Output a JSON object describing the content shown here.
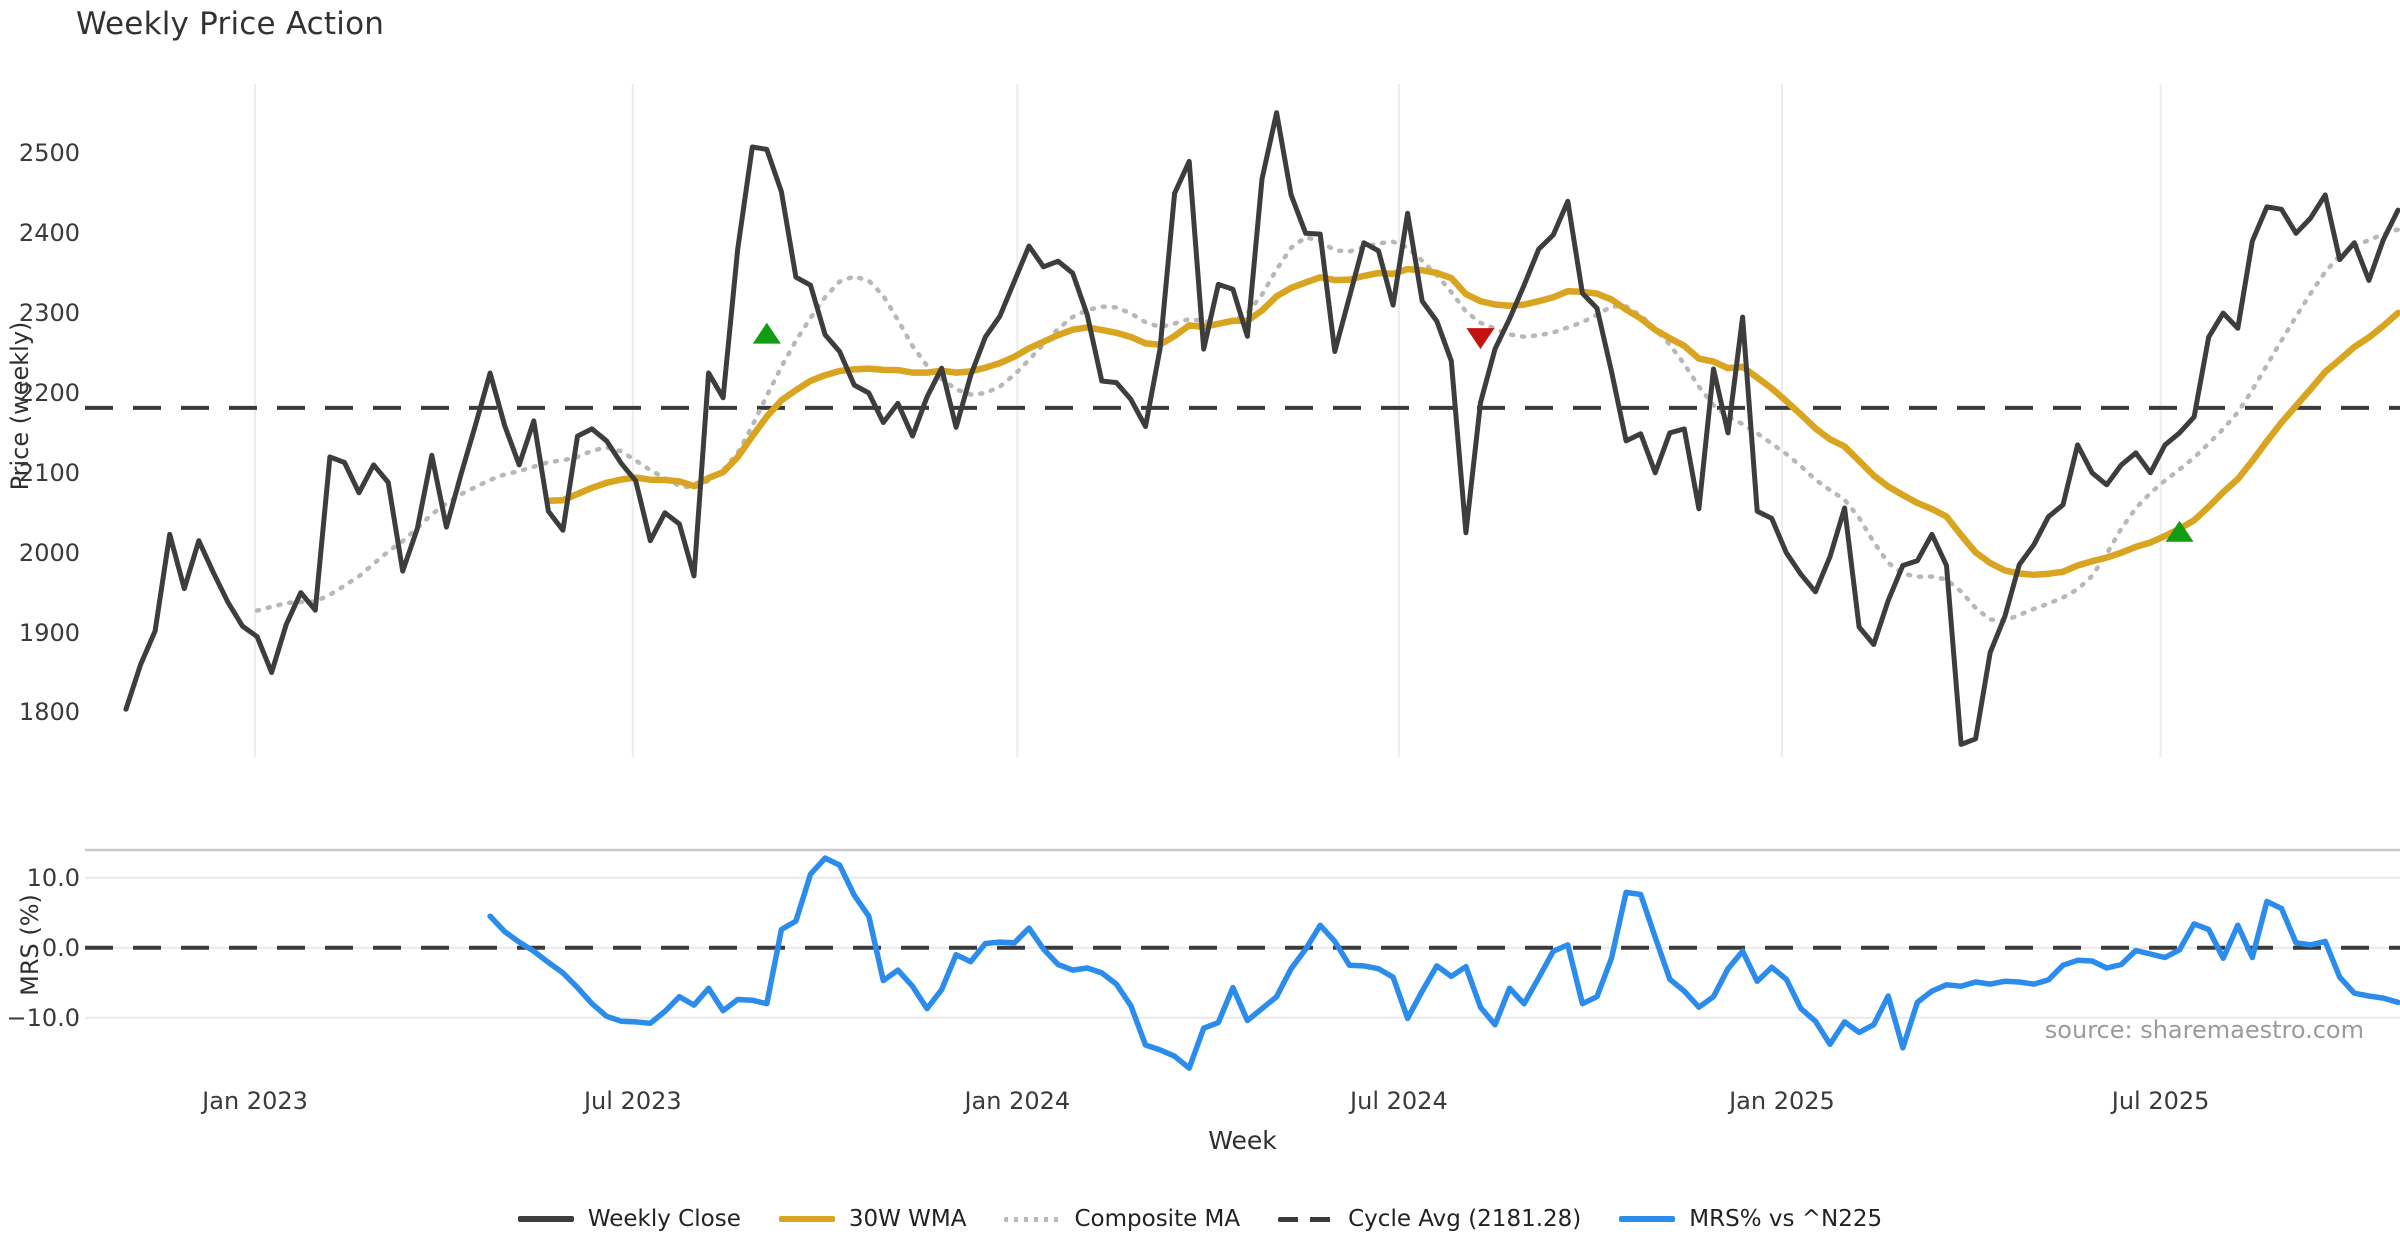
{
  "title": "Weekly Price Action",
  "source": "source: sharemaestro.com",
  "colors": {
    "close": "#3d3d3d",
    "wma": "#d9a521",
    "composite": "#b8b8b8",
    "cycle_dash": "#3a3a3a",
    "mrs": "#2b8cec",
    "buy_marker": "#119c11",
    "sell_marker": "#c41212",
    "gridline": "#ececec",
    "spine": "#c9c9c9"
  },
  "legend": [
    {
      "label": "Weekly Close",
      "swatch": "solid-close"
    },
    {
      "label": "30W WMA",
      "swatch": "solid-wma"
    },
    {
      "label": "Composite MA",
      "swatch": "dotted"
    },
    {
      "label": "Cycle Avg (2181.28)",
      "swatch": "dashed"
    },
    {
      "label": "MRS% vs ^N225",
      "swatch": "solid-mrs"
    }
  ],
  "chart_data": {
    "type": "line",
    "title": "Weekly Price Action",
    "xlabel": "Week",
    "x_ticks": [
      {
        "label": "Jan 2023",
        "week": 8.86
      },
      {
        "label": "Jul 2023",
        "week": 34.8
      },
      {
        "label": "Jan 2024",
        "week": 61.2
      },
      {
        "label": "Jul 2024",
        "week": 87.4
      },
      {
        "label": "Jan 2025",
        "week": 113.7
      },
      {
        "label": "Jul 2025",
        "week": 139.7
      }
    ],
    "panels": [
      {
        "name": "price",
        "ylabel": "Price (weekly)",
        "ylim": [
          1740,
          2580
        ],
        "cycle_avg": 2181.28,
        "yticks": [
          {
            "label": "2500",
            "value": 2500
          },
          {
            "label": "2400",
            "value": 2400
          },
          {
            "label": "2300",
            "value": 2300
          },
          {
            "label": "2200",
            "value": 2200
          },
          {
            "label": "2100",
            "value": 2100
          },
          {
            "label": "2000",
            "value": 2000
          },
          {
            "label": "1900",
            "value": 1900
          },
          {
            "label": "1800",
            "value": 1800
          }
        ],
        "series": {
          "weekly_close": {
            "name": "Weekly Close",
            "start_week": 0,
            "values": [
              1804,
              1860,
              1902,
              2023,
              1955,
              2015,
              1975,
              1938,
              1908,
              1895,
              1850,
              1910,
              1950,
              1928,
              2120,
              2113,
              2075,
              2110,
              2088,
              1977,
              2030,
              2122,
              2032,
              2098,
              2160,
              2225,
              2159,
              2110,
              2165,
              2052,
              2028,
              2146,
              2155,
              2140,
              2112,
              2090,
              2015,
              2050,
              2036,
              1971,
              2225,
              2194,
              2380,
              2508,
              2505,
              2452,
              2345,
              2335,
              2273,
              2252,
              2210,
              2200,
              2163,
              2187,
              2146,
              2195,
              2231,
              2157,
              2222,
              2270,
              2296,
              2340,
              2384,
              2358,
              2365,
              2350,
              2298,
              2215,
              2213,
              2192,
              2158,
              2255,
              2450,
              2490,
              2255,
              2336,
              2330,
              2271,
              2468,
              2551,
              2448,
              2400,
              2399,
              2252,
              2320,
              2388,
              2378,
              2310,
              2425,
              2315,
              2290,
              2240,
              2025,
              2188,
              2255,
              2293,
              2335,
              2380,
              2398,
              2440,
              2325,
              2306,
              2227,
              2140,
              2149,
              2100,
              2150,
              2155,
              2055,
              2230,
              2150,
              2295,
              2052,
              2043,
              2000,
              1973,
              1951,
              1995,
              2056,
              1907,
              1885,
              1940,
              1984,
              1990,
              2023,
              1984,
              1760,
              1767,
              1875,
              1920,
              1985,
              2010,
              2045,
              2060,
              2135,
              2100,
              2085,
              2110,
              2125,
              2100,
              2135,
              2150,
              2170,
              2270,
              2300,
              2281,
              2390,
              2433,
              2430,
              2400,
              2419,
              2448,
              2367,
              2388,
              2341,
              2392,
              2429
            ]
          },
          "wma_30w": {
            "name": "30W WMA",
            "derived_from": "weekly_close",
            "type": "wma",
            "window": 30
          },
          "composite_ma": {
            "name": "Composite MA",
            "derived_from": "weekly_close",
            "type": "sma",
            "window": 10
          }
        },
        "signals": [
          {
            "week": 44,
            "value": 2273,
            "direction": "up"
          },
          {
            "week": 93,
            "value": 2270,
            "direction": "down"
          },
          {
            "week": 141,
            "value": 2025,
            "direction": "up"
          }
        ]
      },
      {
        "name": "mrs",
        "ylabel": "MRS (%)",
        "ylim": [
          -19,
          14.5
        ],
        "zero_line": 0,
        "yticks": [
          {
            "label": "10.0",
            "value": 10
          },
          {
            "label": "0.0",
            "value": 0
          },
          {
            "label": "−10.0",
            "value": -10
          }
        ],
        "series": {
          "mrs": {
            "name": "MRS% vs ^N225",
            "start_week": 25,
            "values": [
              4.5,
              2.3,
              0.8,
              -0.5,
              -2.1,
              -3.6,
              -5.7,
              -8.0,
              -9.8,
              -10.5,
              -10.6,
              -10.8,
              -9.1,
              -7.0,
              -8.2,
              -5.8,
              -9.0,
              -7.4,
              -7.5,
              -8.0,
              2.6,
              3.8,
              10.5,
              12.8,
              11.8,
              7.5,
              4.5,
              -4.7,
              -3.2,
              -5.5,
              -8.7,
              -6.0,
              -1.0,
              -2.0,
              0.6,
              0.8,
              0.7,
              2.8,
              -0.2,
              -2.4,
              -3.2,
              -2.9,
              -3.6,
              -5.2,
              -8.3,
              -13.9,
              -14.6,
              -15.5,
              -17.2,
              -11.5,
              -10.7,
              -5.7,
              -10.4,
              -8.7,
              -7.0,
              -3.0,
              -0.2,
              3.2,
              0.9,
              -2.5,
              -2.6,
              -3.0,
              -4.2,
              -10.1,
              -6.2,
              -2.6,
              -4.1,
              -2.7,
              -8.5,
              -11.0,
              -5.8,
              -8.0,
              -4.3,
              -0.5,
              0.4,
              -8.0,
              -7.0,
              -1.5,
              7.9,
              7.6,
              1.5,
              -4.5,
              -6.2,
              -8.5,
              -7.0,
              -3.0,
              -0.5,
              -4.8,
              -2.8,
              -4.5,
              -8.7,
              -10.5,
              -13.8,
              -10.6,
              -12.1,
              -11.0,
              -6.9,
              -14.3,
              -7.8,
              -6.2,
              -5.3,
              -5.5,
              -4.9,
              -5.2,
              -4.8,
              -4.9,
              -5.2,
              -4.6,
              -2.5,
              -1.8,
              -1.9,
              -2.9,
              -2.4,
              -0.4,
              -0.9,
              -1.4,
              -0.3,
              3.4,
              2.6,
              -1.5,
              3.2,
              -1.4,
              6.6,
              5.6,
              0.7,
              0.4,
              0.9,
              -4.2,
              -6.5,
              -6.9,
              -7.2,
              -7.8
            ]
          }
        }
      }
    ]
  }
}
